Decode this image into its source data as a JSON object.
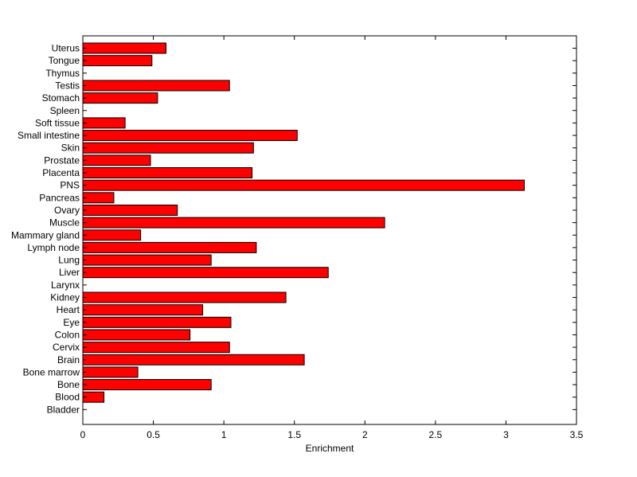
{
  "chart_data": {
    "type": "bar",
    "orientation": "horizontal",
    "categories": [
      "Uterus",
      "Tongue",
      "Thymus",
      "Testis",
      "Stomach",
      "Spleen",
      "Soft tissue",
      "Small intestine",
      "Skin",
      "Prostate",
      "Placenta",
      "PNS",
      "Pancreas",
      "Ovary",
      "Muscle",
      "Mammary gland",
      "Lymph node",
      "Lung",
      "Liver",
      "Larynx",
      "Kidney",
      "Heart",
      "Eye",
      "Colon",
      "Cervix",
      "Brain",
      "Bone marrow",
      "Bone",
      "Blood",
      "Bladder"
    ],
    "values": [
      0.59,
      0.49,
      0,
      1.04,
      0.53,
      0,
      0.3,
      1.52,
      1.21,
      0.48,
      1.2,
      3.13,
      0.22,
      0.67,
      2.14,
      0.41,
      1.23,
      0.91,
      1.74,
      0,
      1.44,
      0.85,
      1.05,
      0.76,
      1.04,
      1.57,
      0.39,
      0.91,
      0.15,
      0
    ],
    "title": "",
    "xlabel": "Enrichment",
    "ylabel": "",
    "xlim": [
      0,
      3.5
    ],
    "xticks": [
      "0",
      "0.5",
      "1",
      "1.5",
      "2",
      "2.5",
      "3",
      "3.5"
    ],
    "grid": false,
    "bar_color": "#ff0000",
    "edge_color": "#000000"
  }
}
